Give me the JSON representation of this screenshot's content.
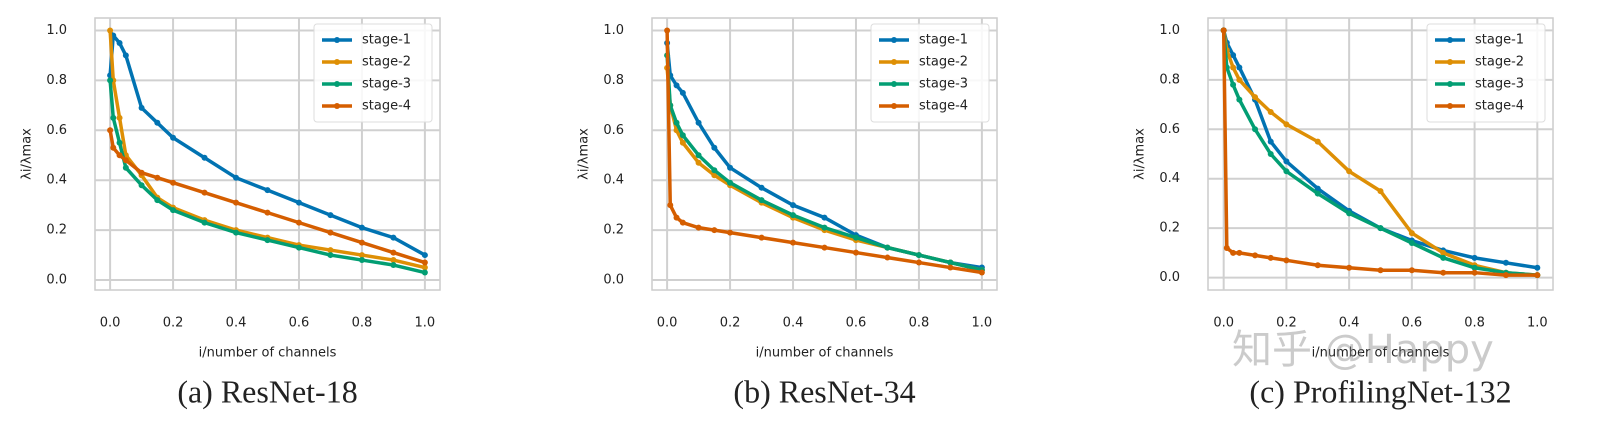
{
  "chart_data": [
    {
      "type": "line",
      "caption": "(a) ResNet-18",
      "xlabel": "i/number of channels",
      "ylabel": "λi/λmax",
      "x": [
        0,
        0.01,
        0.03,
        0.05,
        0.1,
        0.15,
        0.2,
        0.3,
        0.4,
        0.5,
        0.6,
        0.7,
        0.8,
        0.9,
        1.0
      ],
      "series": [
        {
          "name": "stage-1",
          "color": "#0173b2",
          "values": [
            0.82,
            0.98,
            0.95,
            0.9,
            0.69,
            0.63,
            0.57,
            0.49,
            0.41,
            0.36,
            0.31,
            0.26,
            0.21,
            0.17,
            0.1
          ]
        },
        {
          "name": "stage-2",
          "color": "#de8f05",
          "values": [
            1.0,
            0.8,
            0.65,
            0.5,
            0.42,
            0.33,
            0.29,
            0.24,
            0.2,
            0.17,
            0.14,
            0.12,
            0.1,
            0.08,
            0.05
          ]
        },
        {
          "name": "stage-3",
          "color": "#029e73",
          "values": [
            0.8,
            0.65,
            0.55,
            0.45,
            0.38,
            0.32,
            0.28,
            0.23,
            0.19,
            0.16,
            0.13,
            0.1,
            0.08,
            0.06,
            0.03
          ]
        },
        {
          "name": "stage-4",
          "color": "#d55e00",
          "values": [
            0.6,
            0.53,
            0.5,
            0.48,
            0.43,
            0.41,
            0.39,
            0.35,
            0.31,
            0.27,
            0.23,
            0.19,
            0.15,
            0.11,
            0.07
          ]
        }
      ],
      "xlim": [
        -0.048,
        1.048
      ],
      "ylim": [
        -0.04,
        1.05
      ],
      "xticks": [
        {
          "value": 0,
          "label": "0.0"
        },
        {
          "value": 0.2,
          "label": "0.2"
        },
        {
          "value": 0.4,
          "label": "0.4"
        },
        {
          "value": 0.6,
          "label": "0.6"
        },
        {
          "value": 0.8,
          "label": "0.8"
        },
        {
          "value": 1,
          "label": "1.0"
        }
      ],
      "yticks": [
        {
          "value": 0,
          "label": "0.0"
        },
        {
          "value": 0.2,
          "label": "0.2"
        },
        {
          "value": 0.4,
          "label": "0.4"
        },
        {
          "value": 0.6,
          "label": "0.6"
        },
        {
          "value": 0.8,
          "label": "0.8"
        },
        {
          "value": 1,
          "label": "1.0"
        }
      ],
      "grid": true,
      "legend": "upper right"
    },
    {
      "type": "line",
      "caption": "(b) ResNet-34",
      "xlabel": "i/number of channels",
      "ylabel": "λi/λmax",
      "x": [
        0,
        0.01,
        0.03,
        0.05,
        0.1,
        0.15,
        0.2,
        0.3,
        0.4,
        0.5,
        0.6,
        0.7,
        0.8,
        0.9,
        1.0
      ],
      "series": [
        {
          "name": "stage-1",
          "color": "#0173b2",
          "values": [
            0.95,
            0.82,
            0.78,
            0.75,
            0.63,
            0.53,
            0.45,
            0.37,
            0.3,
            0.25,
            0.18,
            0.13,
            0.1,
            0.07,
            0.05
          ]
        },
        {
          "name": "stage-2",
          "color": "#de8f05",
          "values": [
            0.85,
            0.7,
            0.6,
            0.55,
            0.47,
            0.42,
            0.38,
            0.31,
            0.25,
            0.2,
            0.16,
            0.13,
            0.1,
            0.07,
            0.04
          ]
        },
        {
          "name": "stage-3",
          "color": "#029e73",
          "values": [
            0.9,
            0.7,
            0.63,
            0.58,
            0.5,
            0.44,
            0.39,
            0.32,
            0.26,
            0.21,
            0.17,
            0.13,
            0.1,
            0.07,
            0.04
          ]
        },
        {
          "name": "stage-4",
          "color": "#d55e00",
          "values": [
            1.0,
            0.3,
            0.25,
            0.23,
            0.21,
            0.2,
            0.19,
            0.17,
            0.15,
            0.13,
            0.11,
            0.09,
            0.07,
            0.05,
            0.03
          ]
        }
      ],
      "xlim": [
        -0.048,
        1.048
      ],
      "ylim": [
        -0.04,
        1.05
      ],
      "xticks": [
        {
          "value": 0,
          "label": "0.0"
        },
        {
          "value": 0.2,
          "label": "0.2"
        },
        {
          "value": 0.4,
          "label": "0.4"
        },
        {
          "value": 0.6,
          "label": "0.6"
        },
        {
          "value": 0.8,
          "label": "0.8"
        },
        {
          "value": 1,
          "label": "1.0"
        }
      ],
      "yticks": [
        {
          "value": 0,
          "label": "0.0"
        },
        {
          "value": 0.2,
          "label": "0.2"
        },
        {
          "value": 0.4,
          "label": "0.4"
        },
        {
          "value": 0.6,
          "label": "0.6"
        },
        {
          "value": 0.8,
          "label": "0.8"
        },
        {
          "value": 1,
          "label": "1.0"
        }
      ],
      "grid": true,
      "legend": "upper right"
    },
    {
      "type": "line",
      "caption": "(c) ProfilingNet-132",
      "xlabel": "i/number of channels",
      "ylabel": "λi/λmax",
      "x": [
        0,
        0.01,
        0.03,
        0.05,
        0.1,
        0.15,
        0.2,
        0.3,
        0.4,
        0.5,
        0.6,
        0.7,
        0.8,
        0.9,
        1.0
      ],
      "series": [
        {
          "name": "stage-1",
          "color": "#0173b2",
          "values": [
            1.0,
            0.95,
            0.9,
            0.85,
            0.72,
            0.55,
            0.47,
            0.36,
            0.27,
            0.2,
            0.15,
            0.11,
            0.08,
            0.06,
            0.04
          ]
        },
        {
          "name": "stage-2",
          "color": "#de8f05",
          "values": [
            1.0,
            0.92,
            0.85,
            0.8,
            0.73,
            0.67,
            0.62,
            0.55,
            0.43,
            0.35,
            0.18,
            0.1,
            0.05,
            0.02,
            0.01
          ]
        },
        {
          "name": "stage-3",
          "color": "#029e73",
          "values": [
            1.0,
            0.85,
            0.78,
            0.72,
            0.6,
            0.5,
            0.43,
            0.34,
            0.26,
            0.2,
            0.14,
            0.08,
            0.04,
            0.02,
            0.01
          ]
        },
        {
          "name": "stage-4",
          "color": "#d55e00",
          "values": [
            1.0,
            0.12,
            0.1,
            0.1,
            0.09,
            0.08,
            0.07,
            0.05,
            0.04,
            0.03,
            0.03,
            0.02,
            0.02,
            0.01,
            0.01
          ]
        }
      ],
      "xlim": [
        -0.05,
        1.05
      ],
      "ylim": [
        -0.05,
        1.05
      ],
      "xticks": [
        {
          "value": 0,
          "label": "0.0"
        },
        {
          "value": 0.2,
          "label": "0.2"
        },
        {
          "value": 0.4,
          "label": "0.4"
        },
        {
          "value": 0.6,
          "label": "0.6"
        },
        {
          "value": 0.8,
          "label": "0.8"
        },
        {
          "value": 1,
          "label": "1.0"
        }
      ],
      "yticks": [
        {
          "value": 0,
          "label": "0.0"
        },
        {
          "value": 0.2,
          "label": "0.2"
        },
        {
          "value": 0.4,
          "label": "0.4"
        },
        {
          "value": 0.6,
          "label": "0.6"
        },
        {
          "value": 0.8,
          "label": "0.8"
        },
        {
          "value": 1,
          "label": "1.0"
        }
      ],
      "grid": true,
      "legend": "upper right"
    }
  ],
  "watermark": "知乎 @Happy"
}
